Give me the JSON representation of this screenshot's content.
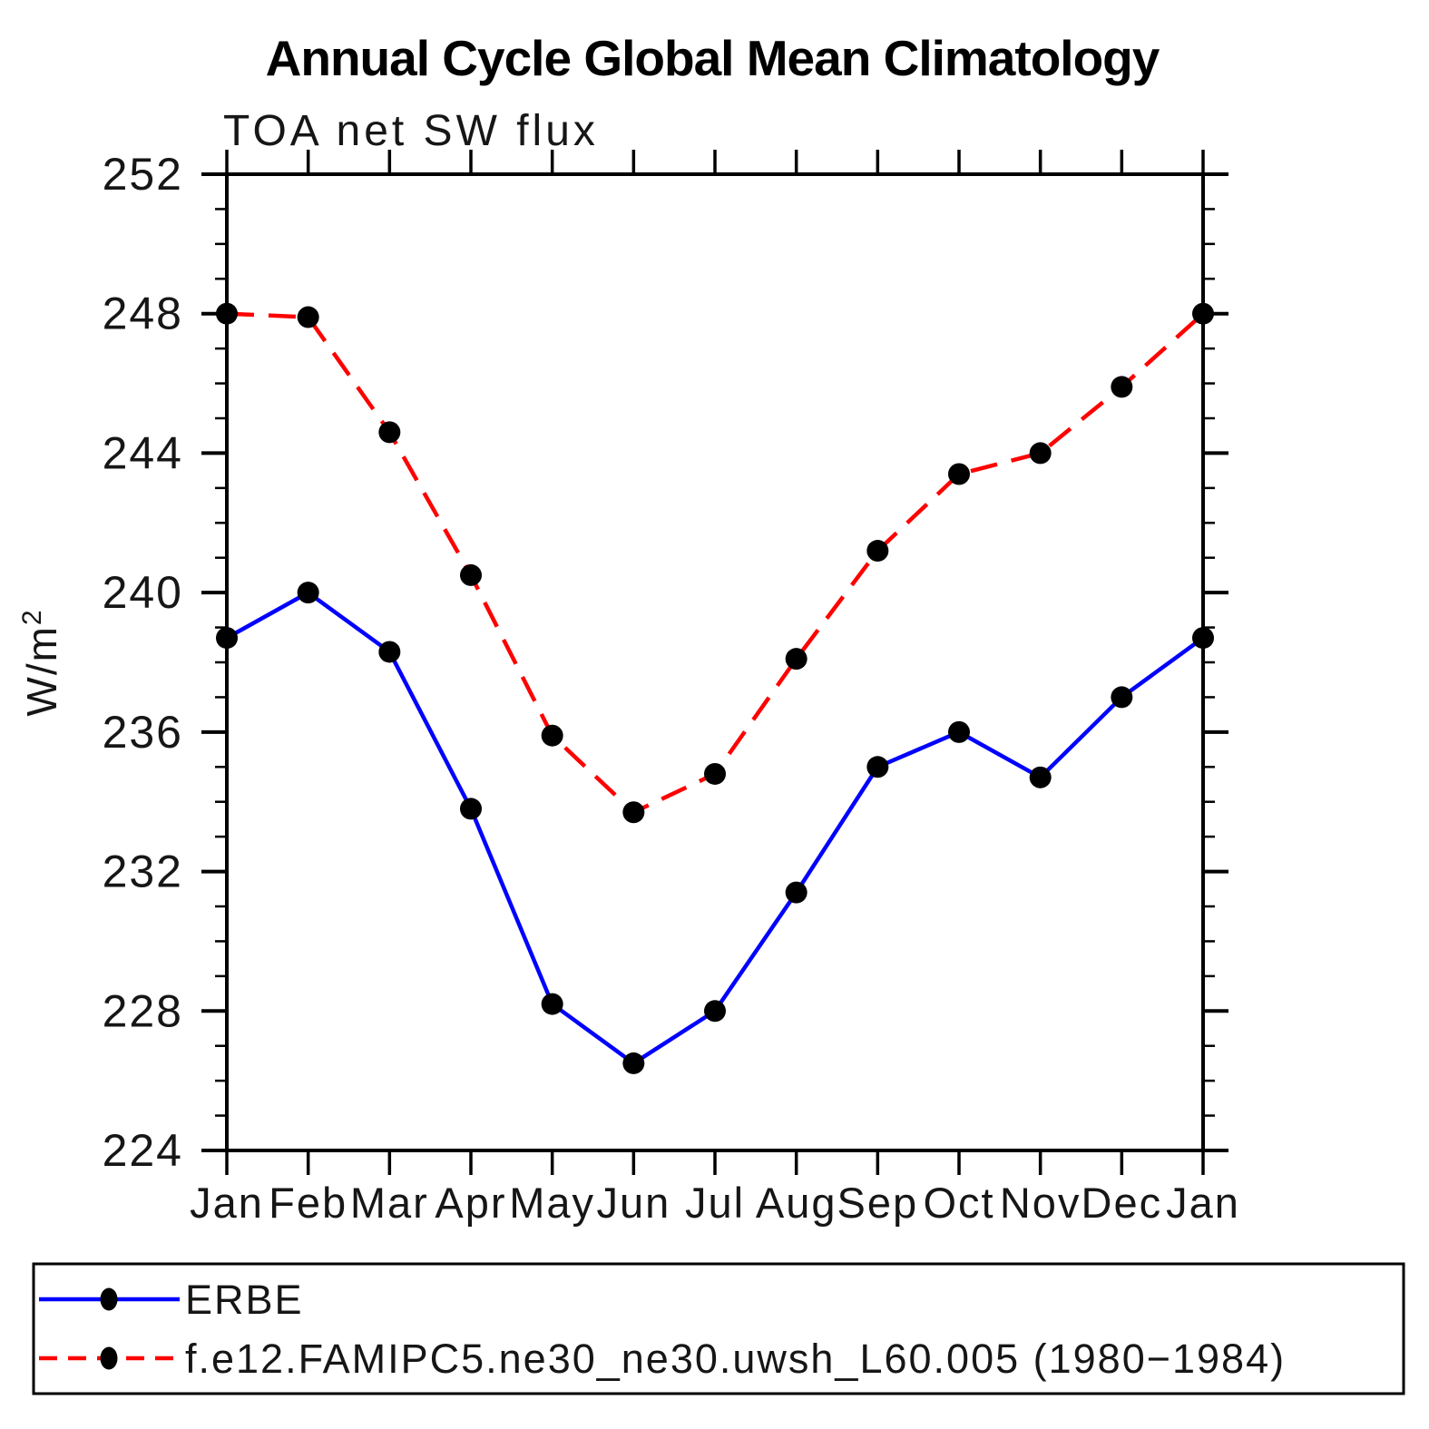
{
  "page": {
    "background_color": "#ffffff",
    "accent_blue": "#0000ff",
    "accent_red": "#ff0000",
    "marker_black": "#000000"
  },
  "chart_data": {
    "type": "line",
    "title": "Annual Cycle Global Mean Climatology",
    "subtitle": "TOA net SW flux",
    "ylabel_base": "W/m",
    "ylabel_exponent": "2",
    "x_categories": [
      "Jan",
      "Feb",
      "Mar",
      "Apr",
      "May",
      "Jun",
      "Jul",
      "Aug",
      "Sep",
      "Oct",
      "Nov",
      "Dec",
      "Jan"
    ],
    "ylim": [
      224,
      252
    ],
    "y_major_tick_step": 4,
    "y_minor_tick_step": 1,
    "y_tick_labels": [
      "224",
      "228",
      "232",
      "236",
      "240",
      "244",
      "248",
      "252"
    ],
    "grid": false,
    "legend_position": "bottom box",
    "series": [
      {
        "name": "ERBE",
        "line_color": "#0000ff",
        "line_style": "solid",
        "marker": "filled-circle",
        "marker_color": "#000000",
        "values": [
          238.7,
          240.0,
          238.3,
          233.8,
          228.2,
          226.5,
          228.0,
          231.4,
          235.0,
          236.0,
          234.7,
          237.0,
          238.7
        ]
      },
      {
        "name": "f.e12.FAMIPC5.ne30_ne30.uwsh_L60.005 (1980−1984)",
        "line_color": "#ff0000",
        "line_style": "dashed",
        "marker": "filled-circle",
        "marker_color": "#000000",
        "values": [
          248.0,
          247.9,
          244.6,
          240.5,
          235.9,
          233.7,
          234.8,
          238.1,
          241.2,
          243.4,
          244.0,
          245.9,
          248.0
        ]
      }
    ]
  }
}
